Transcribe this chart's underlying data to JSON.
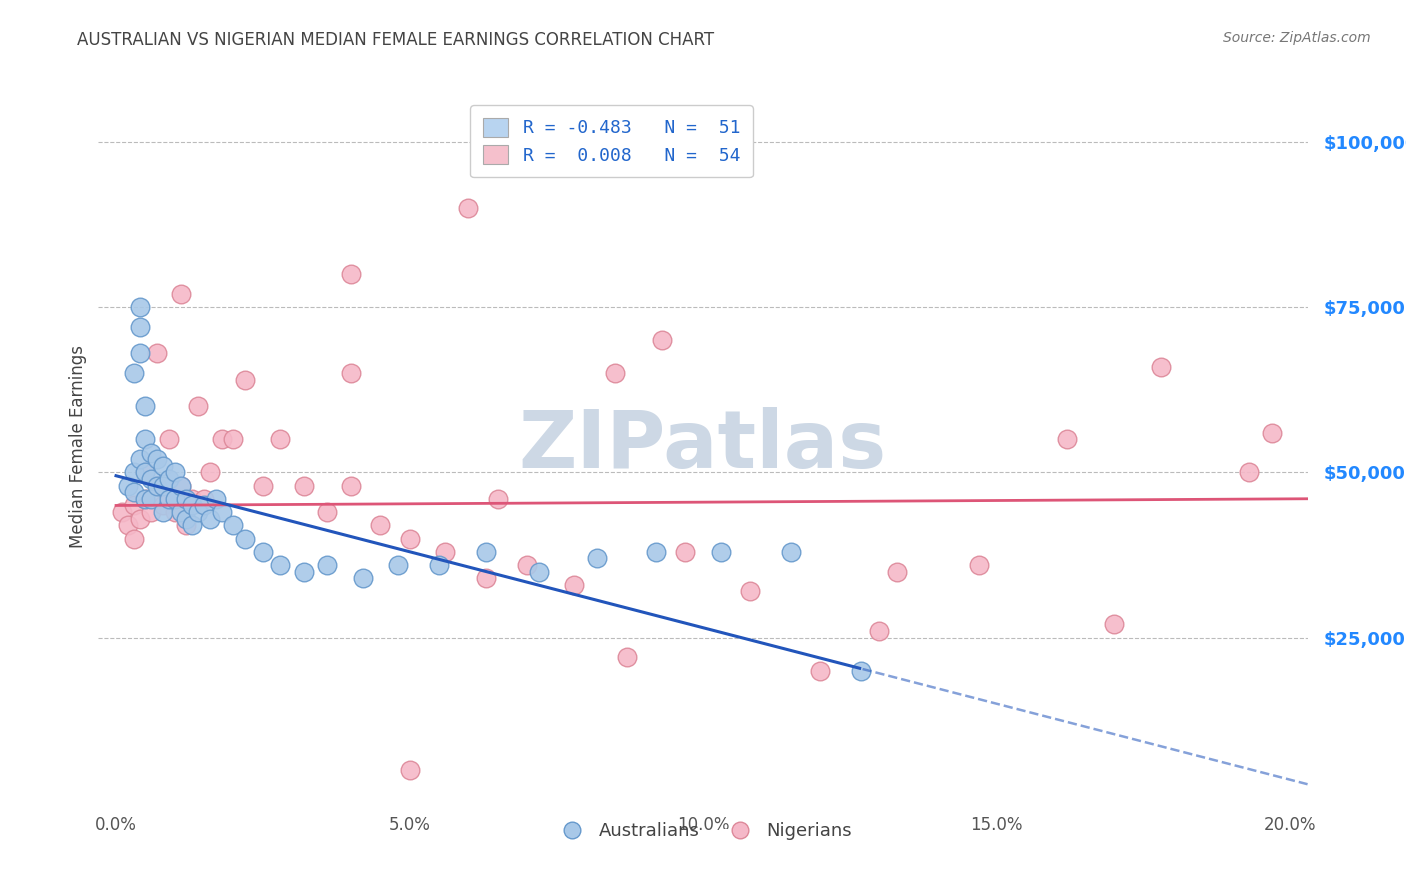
{
  "title": "AUSTRALIAN VS NIGERIAN MEDIAN FEMALE EARNINGS CORRELATION CHART",
  "source": "Source: ZipAtlas.com",
  "ylabel": "Median Female Earnings",
  "ytick_labels": [
    "$25,000",
    "$50,000",
    "$75,000",
    "$100,000"
  ],
  "ytick_vals": [
    25000,
    50000,
    75000,
    100000
  ],
  "xlabel_ticks": [
    "0.0%",
    "5.0%",
    "10.0%",
    "15.0%",
    "20.0%"
  ],
  "xlabel_vals": [
    0.0,
    0.05,
    0.1,
    0.15,
    0.2
  ],
  "ylim": [
    0,
    108000
  ],
  "xlim": [
    -0.003,
    0.203
  ],
  "legend_r_entries": [
    {
      "label_R": "R = ",
      "R_val": "-0.483",
      "label_N": "   N = ",
      "N_val": " 51",
      "color": "#b8d4f0"
    },
    {
      "label_R": "R = ",
      "R_val": " 0.008",
      "label_N": "   N = ",
      "N_val": " 54",
      "color": "#f5c0cc"
    }
  ],
  "australian_color": "#a8c8e8",
  "nigerian_color": "#f5b8c8",
  "australian_edge": "#6699cc",
  "nigerian_edge": "#dd8899",
  "trendline_aus_color": "#2255bb",
  "trendline_nig_color": "#dd5577",
  "watermark_text": "ZIPatlas",
  "watermark_color": "#cdd8e5",
  "background_color": "#ffffff",
  "grid_color": "#bbbbbb",
  "title_color": "#444444",
  "source_color": "#777777",
  "axis_label_color": "#444444",
  "ytick_color": "#2288ff",
  "aus_points_x": [
    0.002,
    0.003,
    0.003,
    0.004,
    0.004,
    0.004,
    0.005,
    0.005,
    0.005,
    0.005,
    0.006,
    0.006,
    0.006,
    0.007,
    0.007,
    0.008,
    0.008,
    0.008,
    0.009,
    0.009,
    0.01,
    0.01,
    0.011,
    0.011,
    0.012,
    0.012,
    0.013,
    0.013,
    0.014,
    0.015,
    0.016,
    0.017,
    0.018,
    0.02,
    0.022,
    0.025,
    0.028,
    0.032,
    0.036,
    0.042,
    0.048,
    0.055,
    0.063,
    0.072,
    0.082,
    0.092,
    0.103,
    0.115,
    0.127,
    0.003,
    0.004
  ],
  "aus_points_y": [
    48000,
    50000,
    47000,
    75000,
    72000,
    52000,
    60000,
    55000,
    50000,
    46000,
    53000,
    49000,
    46000,
    52000,
    48000,
    51000,
    48000,
    44000,
    49000,
    46000,
    50000,
    46000,
    48000,
    44000,
    46000,
    43000,
    45000,
    42000,
    44000,
    45000,
    43000,
    46000,
    44000,
    42000,
    40000,
    38000,
    36000,
    35000,
    36000,
    34000,
    36000,
    36000,
    38000,
    35000,
    37000,
    38000,
    38000,
    38000,
    20000,
    65000,
    68000
  ],
  "nig_points_x": [
    0.001,
    0.002,
    0.003,
    0.003,
    0.004,
    0.005,
    0.005,
    0.006,
    0.007,
    0.008,
    0.009,
    0.01,
    0.011,
    0.012,
    0.013,
    0.014,
    0.015,
    0.016,
    0.018,
    0.02,
    0.022,
    0.025,
    0.028,
    0.032,
    0.036,
    0.04,
    0.045,
    0.05,
    0.056,
    0.063,
    0.07,
    0.078,
    0.087,
    0.097,
    0.108,
    0.12,
    0.133,
    0.147,
    0.162,
    0.178,
    0.193,
    0.197,
    0.007,
    0.009,
    0.011,
    0.04,
    0.065,
    0.085,
    0.04,
    0.06,
    0.093,
    0.13,
    0.17,
    0.05
  ],
  "nig_points_y": [
    44000,
    42000,
    45000,
    40000,
    43000,
    50000,
    46000,
    44000,
    48000,
    45000,
    46000,
    44000,
    48000,
    42000,
    46000,
    60000,
    46000,
    50000,
    55000,
    55000,
    64000,
    48000,
    55000,
    48000,
    44000,
    48000,
    42000,
    40000,
    38000,
    34000,
    36000,
    33000,
    22000,
    38000,
    32000,
    20000,
    35000,
    36000,
    55000,
    66000,
    50000,
    56000,
    68000,
    55000,
    77000,
    65000,
    46000,
    65000,
    80000,
    90000,
    70000,
    26000,
    27000,
    5000
  ],
  "trendline_solid_end": 0.127,
  "trendline_aus_intercept": 49500,
  "trendline_aus_slope": -230000,
  "trendline_nig_intercept": 45000,
  "trendline_nig_slope": 5000
}
